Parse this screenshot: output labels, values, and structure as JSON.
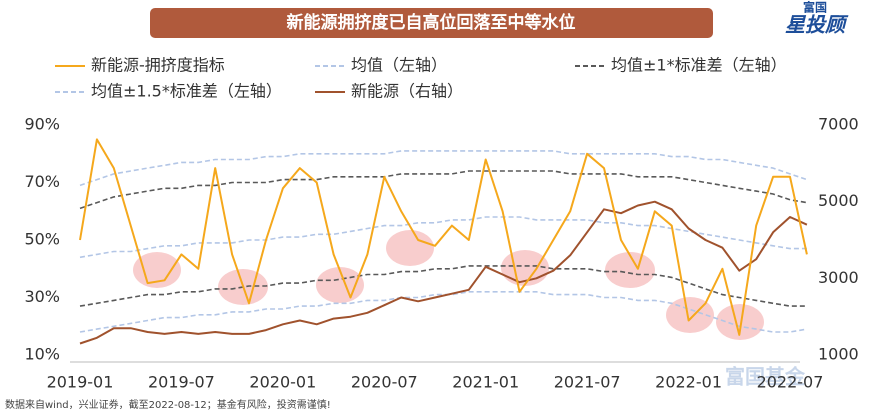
{
  "header": {
    "title": "新能源拥挤度已自高位回落至中等水位",
    "logo_top": "富国",
    "logo_main": "星投顾"
  },
  "footer": {
    "note": "数据来自wind，兴业证券，截至2022-08-12；基金有风险，投资需谨慎!",
    "watermark": "富国基金"
  },
  "chart_data": {
    "type": "line",
    "x": [
      "2019-01",
      "2019-02",
      "2019-03",
      "2019-04",
      "2019-05",
      "2019-06",
      "2019-07",
      "2019-08",
      "2019-09",
      "2019-10",
      "2019-11",
      "2019-12",
      "2020-01",
      "2020-02",
      "2020-03",
      "2020-04",
      "2020-05",
      "2020-06",
      "2020-07",
      "2020-08",
      "2020-09",
      "2020-10",
      "2020-11",
      "2020-12",
      "2021-01",
      "2021-02",
      "2021-03",
      "2021-04",
      "2021-05",
      "2021-06",
      "2021-07",
      "2021-08",
      "2021-09",
      "2021-10",
      "2021-11",
      "2021-12",
      "2022-01",
      "2022-02",
      "2022-03",
      "2022-04",
      "2022-05",
      "2022-06",
      "2022-07",
      "2022-08"
    ],
    "xlim": [
      "2019-01",
      "2022-08"
    ],
    "xticks": [
      "2019-01",
      "2019-07",
      "2020-01",
      "2020-07",
      "2021-01",
      "2021-07",
      "2022-01",
      "2022-07"
    ],
    "ylim": [
      10,
      90
    ],
    "yticks": [
      {
        "value": 10,
        "label": "10%"
      },
      {
        "value": 30,
        "label": "30%"
      },
      {
        "value": 50,
        "label": "50%"
      },
      {
        "value": 70,
        "label": "70%"
      },
      {
        "value": 90,
        "label": "90%"
      }
    ],
    "y2lim": [
      1000,
      7000
    ],
    "y2ticks": [
      1000,
      3000,
      5000,
      7000
    ],
    "series": [
      {
        "name": "新能源-拥挤度指标",
        "color": "#f5a81c",
        "dash": false,
        "values": [
          50,
          85,
          75,
          55,
          35,
          36,
          45,
          40,
          75,
          45,
          28,
          50,
          68,
          75,
          70,
          45,
          30,
          45,
          72,
          60,
          50,
          48,
          55,
          50,
          78,
          60,
          32,
          40,
          50,
          60,
          80,
          75,
          50,
          40,
          60,
          55,
          22,
          28,
          40,
          17,
          55,
          72,
          72,
          45
        ]
      },
      {
        "name": "均值（左轴）",
        "color": "#b3c6e6",
        "dash": true,
        "values": [
          44,
          45,
          46,
          46,
          47,
          48,
          48,
          49,
          49,
          49,
          50,
          50,
          51,
          51,
          52,
          52,
          53,
          54,
          55,
          55,
          56,
          56,
          57,
          57,
          58,
          58,
          58,
          57,
          57,
          57,
          57,
          56,
          56,
          55,
          55,
          54,
          53,
          52,
          51,
          50,
          49,
          48,
          47,
          47
        ]
      },
      {
        "name": "均值±1*标准差（左轴）",
        "color": "#595959",
        "dash": true,
        "values": [
          61,
          63,
          65,
          66,
          67,
          68,
          68,
          69,
          69,
          70,
          70,
          70,
          71,
          71,
          71,
          72,
          72,
          72,
          72,
          73,
          73,
          73,
          73,
          74,
          74,
          74,
          74,
          74,
          74,
          73,
          73,
          73,
          73,
          72,
          72,
          72,
          71,
          70,
          69,
          68,
          67,
          66,
          64,
          63
        ],
        "lower": [
          27,
          28,
          29,
          30,
          31,
          31,
          32,
          32,
          33,
          33,
          34,
          34,
          35,
          35,
          36,
          36,
          37,
          38,
          38,
          39,
          39,
          40,
          40,
          41,
          41,
          41,
          41,
          41,
          40,
          40,
          40,
          39,
          39,
          38,
          38,
          37,
          35,
          33,
          31,
          30,
          29,
          28,
          27,
          27
        ]
      },
      {
        "name": "均值±1.5*标准差（左轴）",
        "color": "#b3c6e6",
        "dash": true,
        "values": [
          69,
          71,
          73,
          74,
          75,
          76,
          77,
          77,
          78,
          78,
          78,
          79,
          79,
          80,
          80,
          80,
          80,
          80,
          80,
          81,
          81,
          81,
          81,
          81,
          81,
          81,
          81,
          81,
          81,
          80,
          80,
          80,
          80,
          80,
          80,
          79,
          79,
          78,
          78,
          77,
          76,
          75,
          73,
          71
        ],
        "lower": [
          18,
          19,
          20,
          21,
          22,
          23,
          23,
          24,
          24,
          25,
          25,
          26,
          26,
          27,
          27,
          28,
          28,
          29,
          29,
          30,
          30,
          31,
          31,
          32,
          32,
          32,
          32,
          32,
          31,
          31,
          31,
          30,
          30,
          29,
          29,
          28,
          26,
          24,
          22,
          20,
          19,
          18,
          18,
          19
        ]
      },
      {
        "name": "新能源（右轴）",
        "color": "#a0522d",
        "dash": false,
        "axis": "y2",
        "values": [
          1300,
          1450,
          1700,
          1700,
          1600,
          1550,
          1600,
          1550,
          1600,
          1550,
          1550,
          1650,
          1800,
          1900,
          1800,
          1950,
          2000,
          2100,
          2300,
          2500,
          2400,
          2500,
          2600,
          2700,
          3300,
          3100,
          2900,
          3000,
          3200,
          3600,
          4200,
          4800,
          4700,
          4900,
          5000,
          4800,
          4300,
          4000,
          3800,
          3200,
          3500,
          4200,
          4600,
          4400
        ]
      }
    ]
  }
}
